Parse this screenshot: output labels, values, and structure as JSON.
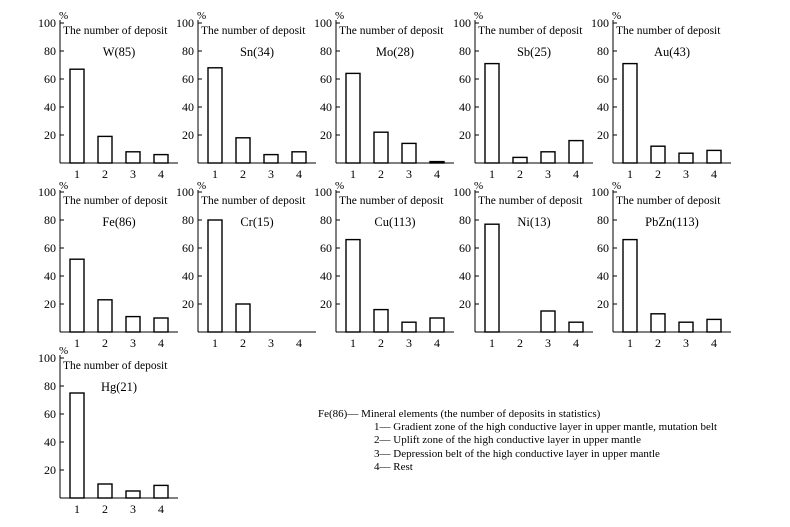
{
  "common": {
    "percent_label": "%",
    "subtitle": "The number of deposit",
    "categories": [
      "1",
      "2",
      "3",
      "4"
    ],
    "yticks": [
      "20",
      "40",
      "60",
      "80",
      "100"
    ],
    "bar_stroke": "#000000",
    "bar_fill": "#ffffff"
  },
  "chart_data": [
    {
      "type": "bar",
      "label": "W(85)",
      "ylabel": "%",
      "subtitle": "The number of deposit",
      "categories": [
        "1",
        "2",
        "3",
        "4"
      ],
      "values": [
        67,
        19,
        8,
        6
      ],
      "ylim": [
        0,
        100
      ]
    },
    {
      "type": "bar",
      "label": "Sn(34)",
      "ylabel": "%",
      "subtitle": "The number of deposit",
      "categories": [
        "1",
        "2",
        "3",
        "4"
      ],
      "values": [
        68,
        18,
        6,
        8
      ],
      "ylim": [
        0,
        100
      ]
    },
    {
      "type": "bar",
      "label": "Mo(28)",
      "ylabel": "%",
      "subtitle": "The number of deposit",
      "categories": [
        "1",
        "2",
        "3",
        "4"
      ],
      "values": [
        64,
        22,
        14,
        1
      ],
      "ylim": [
        0,
        100
      ]
    },
    {
      "type": "bar",
      "label": "Sb(25)",
      "ylabel": "%",
      "subtitle": "The number of deposit",
      "categories": [
        "1",
        "2",
        "3",
        "4"
      ],
      "values": [
        71,
        4,
        8,
        16
      ],
      "ylim": [
        0,
        100
      ]
    },
    {
      "type": "bar",
      "label": "Au(43)",
      "ylabel": "%",
      "subtitle": "The number of deposit",
      "categories": [
        "1",
        "2",
        "3",
        "4"
      ],
      "values": [
        71,
        12,
        7,
        9
      ],
      "ylim": [
        0,
        100
      ]
    },
    {
      "type": "bar",
      "label": "Fe(86)",
      "ylabel": "%",
      "subtitle": "The number of deposit",
      "categories": [
        "1",
        "2",
        "3",
        "4"
      ],
      "values": [
        52,
        23,
        11,
        10
      ],
      "ylim": [
        0,
        100
      ]
    },
    {
      "type": "bar",
      "label": "Cr(15)",
      "ylabel": "%",
      "subtitle": "The number of deposit",
      "categories": [
        "1",
        "2",
        "3",
        "4"
      ],
      "values": [
        80,
        20,
        0,
        0
      ],
      "ylim": [
        0,
        100
      ]
    },
    {
      "type": "bar",
      "label": "Cu(113)",
      "ylabel": "%",
      "subtitle": "The number of deposit",
      "categories": [
        "1",
        "2",
        "3",
        "4"
      ],
      "values": [
        66,
        16,
        7,
        10
      ],
      "ylim": [
        0,
        100
      ]
    },
    {
      "type": "bar",
      "label": "Ni(13)",
      "ylabel": "%",
      "subtitle": "The number of deposit",
      "categories": [
        "1",
        "2",
        "3",
        "4"
      ],
      "values": [
        77,
        0,
        15,
        7
      ],
      "ylim": [
        0,
        100
      ]
    },
    {
      "type": "bar",
      "label": "PbZn(113)",
      "ylabel": "%",
      "subtitle": "The number of deposit",
      "categories": [
        "1",
        "2",
        "3",
        "4"
      ],
      "values": [
        66,
        13,
        7,
        9
      ],
      "ylim": [
        0,
        100
      ]
    },
    {
      "type": "bar",
      "label": "Hg(21)",
      "ylabel": "%",
      "subtitle": "The number of deposit",
      "categories": [
        "1",
        "2",
        "3",
        "4"
      ],
      "values": [
        75,
        10,
        5,
        9
      ],
      "ylim": [
        0,
        100
      ]
    }
  ],
  "legend": {
    "line1": "Fe(86)— Mineral elements (the number of deposits in statistics)",
    "line2": "1— Gradient zone of the high conductive layer in upper mantle, mutation belt",
    "line3": "2— Uplift zone of the high conductive layer in upper mantle",
    "line4": "3— Depression belt of the high conductive layer in upper mantle",
    "line5": "4— Rest"
  }
}
